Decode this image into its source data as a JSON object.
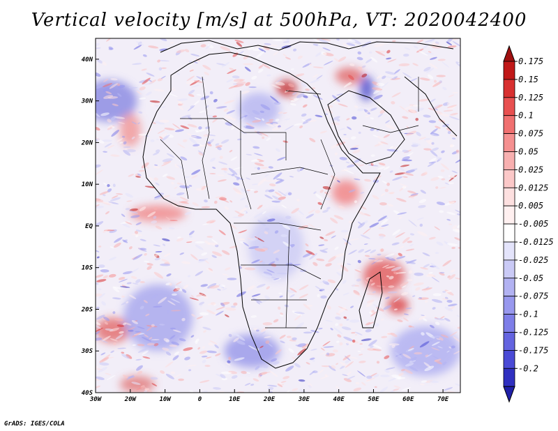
{
  "title": "Vertical velocity [m/s] at 500hPa, VT: 2020042400",
  "footer": "GrADS: IGES/COLA",
  "map": {
    "lon_range": [
      -30,
      75
    ],
    "lat_range": [
      -40,
      45
    ],
    "lon_ticks": [
      {
        "value": -30,
        "label": "30W"
      },
      {
        "value": -20,
        "label": "20W"
      },
      {
        "value": -10,
        "label": "10W"
      },
      {
        "value": 0,
        "label": "0"
      },
      {
        "value": 10,
        "label": "10E"
      },
      {
        "value": 20,
        "label": "20E"
      },
      {
        "value": 30,
        "label": "30E"
      },
      {
        "value": 40,
        "label": "40E"
      },
      {
        "value": 50,
        "label": "50E"
      },
      {
        "value": 60,
        "label": "60E"
      },
      {
        "value": 70,
        "label": "70E"
      }
    ],
    "lat_ticks": [
      {
        "value": 40,
        "label": "40N"
      },
      {
        "value": 30,
        "label": "30N"
      },
      {
        "value": 20,
        "label": "20N"
      },
      {
        "value": 10,
        "label": "10N"
      },
      {
        "value": 0,
        "label": "EQ"
      },
      {
        "value": -10,
        "label": "10S"
      },
      {
        "value": -20,
        "label": "20S"
      },
      {
        "value": -30,
        "label": "30S"
      },
      {
        "value": -40,
        "label": "40S"
      }
    ],
    "colors": {
      "background": "#f2eef8",
      "coastline": "#000000"
    }
  },
  "colorbar": {
    "levels": [
      {
        "label": "0.175",
        "color": "#c01818"
      },
      {
        "label": "0.15",
        "color": "#d83030"
      },
      {
        "label": "0.125",
        "color": "#e85050"
      },
      {
        "label": "0.1",
        "color": "#f07070"
      },
      {
        "label": "0.075",
        "color": "#f59090"
      },
      {
        "label": "0.05",
        "color": "#f8b0b0"
      },
      {
        "label": "0.025",
        "color": "#fbc8c8"
      },
      {
        "label": "0.0125",
        "color": "#fde0e0"
      },
      {
        "label": "0.005",
        "color": "#fff0f0"
      },
      {
        "label": "-0.005",
        "color": "#ffffff"
      },
      {
        "label": "-0.0125",
        "color": "#e4e4fb"
      },
      {
        "label": "-0.025",
        "color": "#cacaf6"
      },
      {
        "label": "-0.05",
        "color": "#b2b2f2"
      },
      {
        "label": "-0.075",
        "color": "#9898ee"
      },
      {
        "label": "-0.1",
        "color": "#7e7ee8"
      },
      {
        "label": "-0.125",
        "color": "#6464e0"
      },
      {
        "label": "-0.175",
        "color": "#4a4ad6"
      },
      {
        "label": "-0.2",
        "color": "#3030c0"
      }
    ],
    "top_arrow_color": "#a01010",
    "bottom_arrow_color": "#2020a8"
  },
  "field_patches": [
    {
      "name": "atlantic-nw-downdraft",
      "lon": -26,
      "lat": 30,
      "rx": 8,
      "ry": 5,
      "color": "#8080e0"
    },
    {
      "name": "mediterranean-updraft",
      "lon": 25,
      "lat": 33,
      "rx": 3,
      "ry": 2,
      "color": "#c02020"
    },
    {
      "name": "eastern-med-updraft",
      "lon": 43,
      "lat": 36,
      "rx": 4,
      "ry": 2,
      "color": "#e06060"
    },
    {
      "name": "arabia-downdraft",
      "lon": 48,
      "lat": 33,
      "rx": 2,
      "ry": 3,
      "color": "#4040c8"
    },
    {
      "name": "gulf-of-guinea-updraft",
      "lon": -12,
      "lat": 3,
      "rx": 8,
      "ry": 2,
      "color": "#f08080"
    },
    {
      "name": "west-africa-updraft",
      "lon": -20,
      "lat": 23,
      "rx": 3,
      "ry": 4,
      "color": "#f09090"
    },
    {
      "name": "horn-updraft",
      "lon": 42,
      "lat": 8,
      "rx": 4,
      "ry": 3,
      "color": "#f07878"
    },
    {
      "name": "indian-ocean-updraft",
      "lon": 53,
      "lat": -12,
      "rx": 6,
      "ry": 4,
      "color": "#e05050"
    },
    {
      "name": "madagascar-updraft",
      "lon": 57,
      "lat": -19,
      "rx": 3,
      "ry": 2,
      "color": "#d83030"
    },
    {
      "name": "sw-atlantic-updraft",
      "lon": -25,
      "lat": -25,
      "rx": 5,
      "ry": 3,
      "color": "#e06060"
    },
    {
      "name": "south-atlantic-downdraft",
      "lon": -12,
      "lat": -22,
      "rx": 10,
      "ry": 8,
      "color": "#a0a0ec"
    },
    {
      "name": "southern-africa-downdraft",
      "lon": 15,
      "lat": -30,
      "rx": 8,
      "ry": 4,
      "color": "#9090e8"
    },
    {
      "name": "southern-ocean-updraft",
      "lon": -18,
      "lat": -38,
      "rx": 5,
      "ry": 2,
      "color": "#e07070"
    },
    {
      "name": "indian-ocean-downdraft",
      "lon": 65,
      "lat": -30,
      "rx": 10,
      "ry": 6,
      "color": "#a8a8f0"
    },
    {
      "name": "sahara-downdraft",
      "lon": 17,
      "lat": 28,
      "rx": 6,
      "ry": 4,
      "color": "#b0b0f0"
    },
    {
      "name": "central-africa-mixed",
      "lon": 22,
      "lat": -5,
      "rx": 8,
      "ry": 8,
      "color": "#c8c8f4"
    }
  ]
}
